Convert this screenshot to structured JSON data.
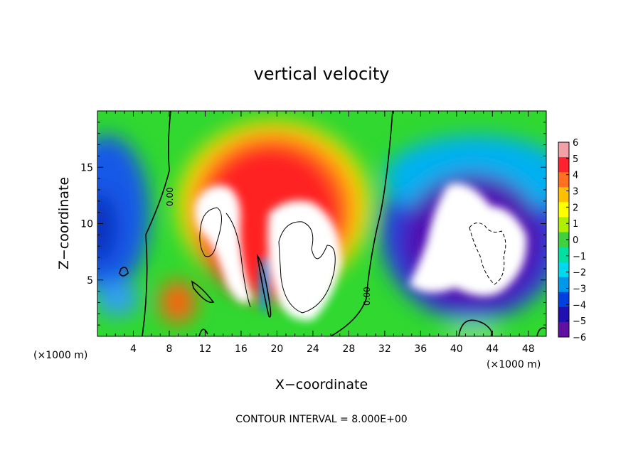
{
  "chart_data": {
    "type": "heatmap",
    "title": "vertical velocity",
    "xlabel": "X−coordinate",
    "ylabel": "Z−coordinate",
    "x_unit_left": "(×1000 m)",
    "x_unit_right": "(×1000 m)",
    "footer": "CONTOUR INTERVAL = 8.000E+00",
    "contour_label": "0.00",
    "xlim": [
      0,
      50
    ],
    "ylim": [
      0,
      20
    ],
    "x_ticks": [
      4,
      8,
      12,
      16,
      20,
      24,
      28,
      32,
      36,
      40,
      44,
      48
    ],
    "y_ticks": [
      5,
      10,
      15
    ],
    "colorbar": {
      "ticks": [
        "6",
        "5",
        "4",
        "3",
        "2",
        "1",
        "0",
        "−1",
        "−2",
        "−3",
        "−4",
        "−5",
        "−6"
      ],
      "range": [
        -6,
        6
      ],
      "colors": [
        "#f2a0a8",
        "#ff2030",
        "#ff7020",
        "#ffc000",
        "#ffff00",
        "#b0ee00",
        "#40d040",
        "#00e0a0",
        "#00d8ee",
        "#0098e8",
        "#0040e0",
        "#2010b0",
        "#6010a0"
      ]
    },
    "features": [
      {
        "name": "updraft-left",
        "x": 15.5,
        "z": 11,
        "w": 8,
        "min_saturated": true
      },
      {
        "name": "updraft-right",
        "x": 22.5,
        "z": 10,
        "w": 8,
        "min_saturated": true
      },
      {
        "name": "downdraft-right",
        "x": 42,
        "z": 9,
        "w": -8,
        "min_saturated": true
      },
      {
        "name": "downdraft-left",
        "x": 1.5,
        "z": 10,
        "w": -4
      }
    ]
  }
}
